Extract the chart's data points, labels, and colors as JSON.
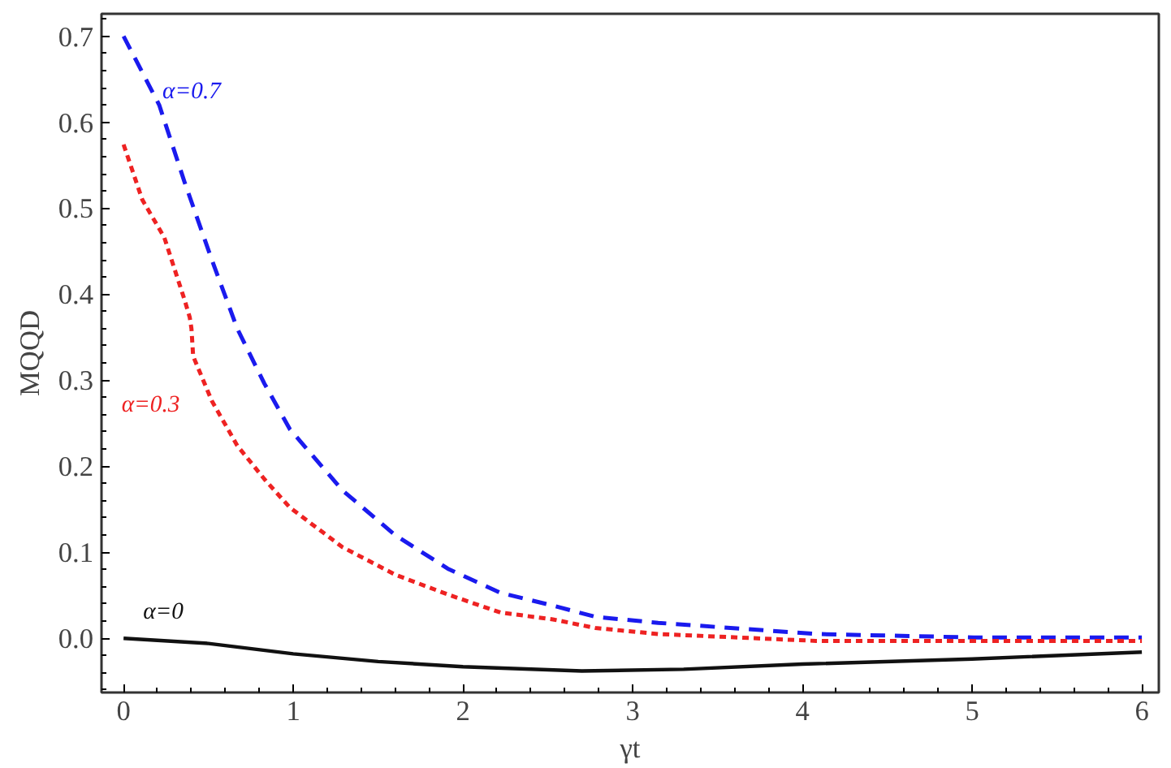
{
  "chart_data": {
    "type": "line",
    "xlabel": "γt",
    "ylabel": "MQQD",
    "xlim": [
      -0.13,
      6.1
    ],
    "ylim": [
      -0.063,
      0.726
    ],
    "xticks": [
      0,
      1,
      2,
      3,
      4,
      5,
      6
    ],
    "yticks": [
      {
        "value": 0,
        "label": "0.0"
      },
      {
        "value": 0.1,
        "label": "0.1"
      },
      {
        "value": 0.2,
        "label": "0.2"
      },
      {
        "value": 0.3,
        "label": "0.3"
      },
      {
        "value": 0.4,
        "label": "0.4"
      },
      {
        "value": 0.5,
        "label": "0.5"
      },
      {
        "value": 0.6,
        "label": "0.6"
      },
      {
        "value": 0.7,
        "label": "0.7"
      }
    ],
    "grid": false,
    "series": [
      {
        "name": "α=0.7",
        "color": "#1a1aee",
        "line_style": "dashed",
        "x": [
          0,
          0.21,
          0.36,
          0.52,
          0.67,
          0.83,
          0.98,
          1.29,
          1.6,
          1.91,
          2.22,
          2.53,
          2.78,
          3.15,
          4.08,
          5.01,
          6
        ],
        "values": [
          0.7,
          0.62,
          0.53,
          0.44,
          0.36,
          0.296,
          0.243,
          0.172,
          0.12,
          0.081,
          0.053,
          0.038,
          0.025,
          0.018,
          0.005,
          0.001,
          0.001
        ]
      },
      {
        "name": "α=0.3",
        "color": "#ee2222",
        "line_style": "dashed",
        "x": [
          0,
          0.11,
          0.24,
          0.36,
          0.39,
          0.4,
          0.41,
          0.52,
          0.67,
          0.83,
          0.98,
          1.29,
          1.6,
          1.91,
          2.22,
          2.53,
          2.78,
          3.15,
          4.08,
          6
        ],
        "values": [
          0.574,
          0.51,
          0.466,
          0.393,
          0.373,
          0.36,
          0.328,
          0.276,
          0.224,
          0.185,
          0.152,
          0.106,
          0.074,
          0.051,
          0.03,
          0.022,
          0.012,
          0.005,
          -0.003,
          -0.003
        ]
      },
      {
        "name": "α=0",
        "color": "#111111",
        "line_style": "solid",
        "x": [
          0,
          0.5,
          1,
          1.5,
          2,
          2.7,
          3.3,
          4,
          5,
          6
        ],
        "values": [
          0,
          -0.006,
          -0.018,
          -0.027,
          -0.033,
          -0.038,
          -0.036,
          -0.03,
          -0.024,
          -0.016
        ]
      }
    ]
  }
}
